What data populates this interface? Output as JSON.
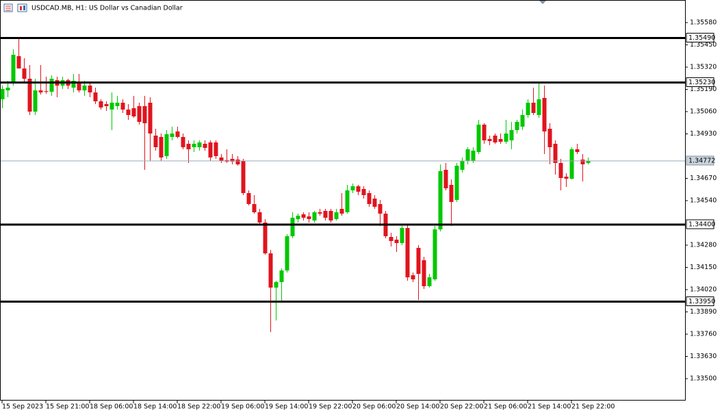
{
  "chart_data": {
    "type": "candlestick",
    "title": "USDCAD.MB, H1:  US Dollar vs Canadian Dollar",
    "categories": [
      "15 Sep 2023",
      null,
      null,
      null,
      null,
      null,
      null,
      null,
      "15 Sep 21:00",
      null,
      null,
      null,
      null,
      null,
      null,
      null,
      "18 Sep 06:00",
      null,
      null,
      null,
      null,
      null,
      null,
      null,
      "18 Sep 14:00",
      null,
      null,
      null,
      null,
      null,
      null,
      null,
      "18 Sep 22:00",
      null,
      null,
      null,
      null,
      null,
      null,
      null,
      "19 Sep 06:00",
      null,
      null,
      null,
      null,
      null,
      null,
      null,
      "19 Sep 14:00",
      null,
      null,
      null,
      null,
      null,
      null,
      null,
      "19 Sep 22:00",
      null,
      null,
      null,
      null,
      null,
      null,
      null,
      "20 Sep 06:00",
      null,
      null,
      null,
      null,
      null,
      null,
      null,
      "20 Sep 14:00",
      null,
      null,
      null,
      null,
      null,
      null,
      null,
      "20 Sep 22:00",
      null,
      null,
      null,
      null,
      null,
      null,
      null,
      "21 Sep 06:00",
      null,
      null,
      null,
      null,
      null,
      null,
      null,
      "21 Sep 14:00",
      null,
      null,
      null,
      null,
      null,
      null,
      null,
      "21 Sep 22:00",
      null,
      null,
      null
    ],
    "open": [
      1.35132,
      1.35184,
      1.35232,
      1.35384,
      1.35312,
      1.35252,
      1.3506,
      1.35184,
      1.3518,
      1.35176,
      1.35244,
      1.35212,
      1.35244,
      1.352,
      1.35232,
      1.35184,
      1.35212,
      1.35172,
      1.3512,
      1.35104,
      1.35072,
      1.35092,
      1.35112,
      1.35072,
      1.3508,
      1.35092,
      1.35092,
      1.35112,
      1.3492,
      1.34912,
      1.348,
      1.34912,
      1.34944,
      1.34912,
      1.34872,
      1.34852,
      1.34852,
      1.34872,
      1.3488,
      1.3488,
      1.34792,
      1.34776,
      1.34784,
      1.3478,
      1.34772,
      1.34584,
      1.3452,
      1.34472,
      1.34412,
      1.34232,
      1.34032,
      1.34064,
      1.34132,
      1.34332,
      1.34432,
      1.3446,
      1.34448,
      1.34424,
      1.34472,
      1.3448,
      1.3448,
      1.34432,
      1.34492,
      1.34472,
      1.346,
      1.34624,
      1.34608,
      1.34584,
      1.34552,
      1.3452,
      1.34464,
      1.34328,
      1.34312,
      1.34292,
      1.3438,
      1.34104,
      1.34264,
      1.34192,
      1.3404,
      1.3408,
      1.34372,
      1.3472,
      1.34632,
      1.34544,
      1.3472,
      1.34772,
      1.34772,
      1.34824,
      1.34984,
      1.349,
      1.3492,
      1.349,
      1.34884,
      1.34892,
      1.34952,
      1.34972,
      1.3504,
      1.35112,
      1.3504,
      1.3514,
      1.3496,
      1.34872,
      1.3476,
      1.3468,
      1.34668,
      1.3484,
      1.3478,
      1.3476
    ],
    "high": [
      1.35212,
      1.3524,
      1.35424,
      1.35492,
      1.35372,
      1.35332,
      1.35252,
      1.35332,
      1.35264,
      1.35272,
      1.35264,
      1.35264,
      1.35252,
      1.3528,
      1.3528,
      1.3524,
      1.35232,
      1.352,
      1.35132,
      1.3512,
      1.35172,
      1.35152,
      1.35132,
      1.35104,
      1.35152,
      1.35112,
      1.35152,
      1.35144,
      1.3496,
      1.34932,
      1.34952,
      1.34972,
      1.34972,
      1.34932,
      1.34892,
      1.34892,
      1.34892,
      1.34892,
      1.34892,
      1.34892,
      1.34812,
      1.3484,
      1.34812,
      1.348,
      1.34784,
      1.346,
      1.34572,
      1.34492,
      1.34432,
      1.34252,
      1.34072,
      1.34144,
      1.34344,
      1.34472,
      1.34464,
      1.34472,
      1.34472,
      1.3448,
      1.34492,
      1.34492,
      1.34492,
      1.34492,
      1.34584,
      1.34632,
      1.3464,
      1.34632,
      1.34624,
      1.346,
      1.34572,
      1.34544,
      1.3448,
      1.34352,
      1.34332,
      1.34392,
      1.344,
      1.3412,
      1.3428,
      1.34212,
      1.34112,
      1.34392,
      1.34752,
      1.3476,
      1.34664,
      1.3476,
      1.34792,
      1.34852,
      1.34852,
      1.35012,
      1.34992,
      1.3492,
      1.34932,
      1.34932,
      1.35012,
      1.35,
      1.35012,
      1.35072,
      1.35132,
      1.352,
      1.35224,
      1.35212,
      1.34992,
      1.34892,
      1.34784,
      1.347,
      1.34852,
      1.34872,
      1.34812,
      1.34792
    ],
    "low": [
      1.3508,
      1.35144,
      1.35212,
      1.35332,
      1.35232,
      1.3504,
      1.3504,
      1.3516,
      1.35164,
      1.35152,
      1.35144,
      1.35192,
      1.35192,
      1.35172,
      1.35172,
      1.35152,
      1.35144,
      1.35104,
      1.35072,
      1.35064,
      1.34952,
      1.35072,
      1.35052,
      1.35012,
      1.35024,
      1.34984,
      1.3472,
      1.34772,
      1.34832,
      1.34772,
      1.34784,
      1.34892,
      1.34904,
      1.3484,
      1.3476,
      1.34824,
      1.34832,
      1.34832,
      1.34772,
      1.34784,
      1.3476,
      1.3476,
      1.34752,
      1.34744,
      1.34572,
      1.34512,
      1.34464,
      1.344,
      1.34224,
      1.33772,
      1.3384,
      1.33952,
      1.3412,
      1.3432,
      1.34412,
      1.34424,
      1.34412,
      1.34412,
      1.34452,
      1.34424,
      1.34412,
      1.34424,
      1.34452,
      1.34464,
      1.34584,
      1.34572,
      1.34552,
      1.34504,
      1.34492,
      1.34392,
      1.3432,
      1.34272,
      1.3424,
      1.3428,
      1.34072,
      1.34064,
      1.3396,
      1.34024,
      1.34032,
      1.34072,
      1.3436,
      1.346,
      1.34392,
      1.34532,
      1.34704,
      1.34752,
      1.3476,
      1.34812,
      1.34872,
      1.34864,
      1.34872,
      1.34872,
      1.34872,
      1.3484,
      1.34932,
      1.34952,
      1.35024,
      1.3504,
      1.35024,
      1.34812,
      1.34752,
      1.34692,
      1.346,
      1.3462,
      1.34664,
      1.34812,
      1.34652,
      1.34752
    ],
    "close": [
      1.35192,
      1.352,
      1.35392,
      1.35312,
      1.35252,
      1.3506,
      1.35184,
      1.35172,
      1.35176,
      1.35252,
      1.35212,
      1.35244,
      1.35212,
      1.3524,
      1.35184,
      1.35212,
      1.35172,
      1.3512,
      1.35084,
      1.35092,
      1.35112,
      1.35112,
      1.35072,
      1.3504,
      1.35032,
      1.35,
      1.34992,
      1.34932,
      1.34852,
      1.34792,
      1.34928,
      1.34932,
      1.34912,
      1.34852,
      1.3484,
      1.34872,
      1.3488,
      1.34848,
      1.34792,
      1.348,
      1.34772,
      1.34768,
      1.34768,
      1.34752,
      1.34584,
      1.3452,
      1.34472,
      1.34412,
      1.34232,
      1.34032,
      1.34064,
      1.34132,
      1.34332,
      1.3444,
      1.34452,
      1.3444,
      1.34432,
      1.34472,
      1.34464,
      1.3444,
      1.34424,
      1.34472,
      1.34464,
      1.346,
      1.34624,
      1.34592,
      1.34572,
      1.3452,
      1.34504,
      1.34464,
      1.34332,
      1.34304,
      1.34292,
      1.3438,
      1.34092,
      1.3408,
      1.34112,
      1.3404,
      1.34092,
      1.34372,
      1.34712,
      1.34612,
      1.34532,
      1.34744,
      1.34772,
      1.3484,
      1.34832,
      1.34984,
      1.34892,
      1.34888,
      1.3488,
      1.34884,
      1.34932,
      1.34952,
      1.35,
      1.3504,
      1.35112,
      1.35052,
      1.35132,
      1.34944,
      1.34852,
      1.3476,
      1.34672,
      1.34668,
      1.3484,
      1.34824,
      1.34752,
      1.34772
    ],
    "up_color": "#00c800",
    "down_color": "#e0141e",
    "ylim": [
      1.33372,
      1.35712
    ],
    "yticks": [
      {
        "value": 1.3558,
        "label": "1.35580"
      },
      {
        "value": 1.3545,
        "label": "1.35450"
      },
      {
        "value": 1.3532,
        "label": "1.35320"
      },
      {
        "value": 1.3519,
        "label": "1.35190"
      },
      {
        "value": 1.3506,
        "label": "1.35060"
      },
      {
        "value": 1.3493,
        "label": "1.34930"
      },
      {
        "value": 1.3467,
        "label": "1.34670"
      },
      {
        "value": 1.3454,
        "label": "1.34540"
      },
      {
        "value": 1.3428,
        "label": "1.34280"
      },
      {
        "value": 1.3415,
        "label": "1.34150"
      },
      {
        "value": 1.3402,
        "label": "1.34020"
      },
      {
        "value": 1.3389,
        "label": "1.33890"
      },
      {
        "value": 1.3376,
        "label": "1.33760"
      },
      {
        "value": 1.3363,
        "label": "1.33630"
      },
      {
        "value": 1.335,
        "label": "1.33500"
      }
    ],
    "levels": [
      {
        "value": 1.3549,
        "label": "1.35490"
      },
      {
        "value": 1.3523,
        "label": "1.35230"
      },
      {
        "value": 1.344,
        "label": "1.34400"
      },
      {
        "value": 1.3395,
        "label": "1.33950"
      }
    ],
    "current_price": {
      "value": 1.34772,
      "label": "1.34772"
    }
  }
}
